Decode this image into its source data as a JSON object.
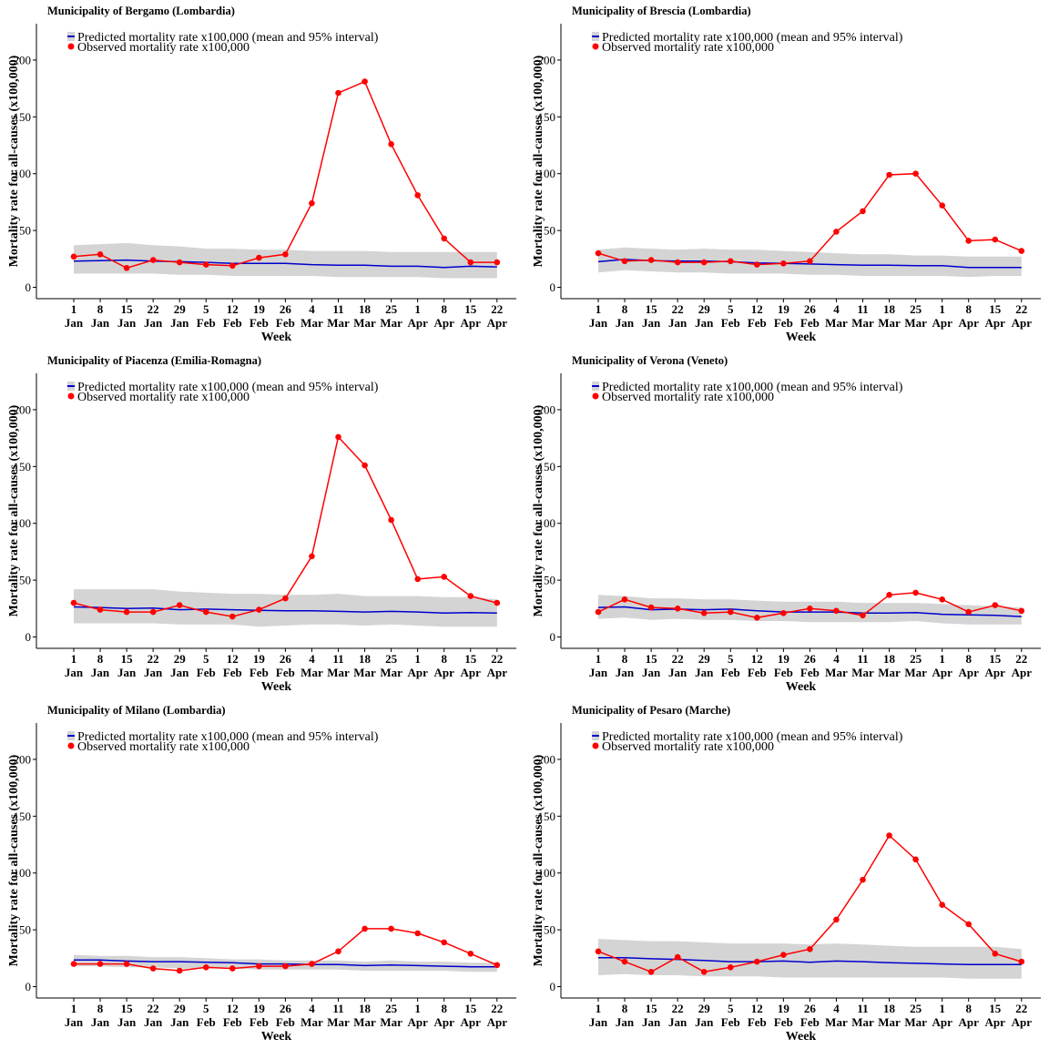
{
  "palette": {
    "band": "#d4d4d4",
    "predicted": "#0000cc",
    "observed": "#ff0000",
    "axis": "#000000"
  },
  "chart_data": [
    {
      "type": "line",
      "title": "Municipality of Bergamo (Lombardia)",
      "xlabel": "Week",
      "ylabel": "Mortality rate for all-causes (x100,000)",
      "ylim": [
        -10,
        232
      ],
      "yticks": [
        0,
        50,
        100,
        150,
        200
      ],
      "categories": [
        "1 Jan",
        "8 Jan",
        "15 Jan",
        "22 Jan",
        "29 Jan",
        "5 Feb",
        "12 Feb",
        "19 Feb",
        "26 Feb",
        "4 Mar",
        "11 Mar",
        "18 Mar",
        "25 Mar",
        "1 Apr",
        "8 Apr",
        "15 Apr",
        "22 Apr"
      ],
      "legend": {
        "position": "top-left",
        "entries": [
          "Predicted mortality rate x100,000 (mean and 95% interval)",
          "Observed mortality rate x100,000"
        ]
      },
      "series": [
        {
          "name": "Predicted mortality rate x100,000 (mean and 95% interval)",
          "kind": "mean",
          "values": [
            23,
            23.5,
            24,
            23,
            22.5,
            22,
            21,
            21,
            21,
            20,
            19.5,
            19.5,
            18.5,
            18.5,
            17.5,
            18.5,
            18
          ]
        },
        {
          "kind": "lower",
          "values": [
            12,
            12,
            12,
            12,
            11,
            11,
            10,
            10,
            10,
            10,
            9,
            9,
            9,
            9,
            8,
            8,
            8
          ]
        },
        {
          "kind": "upper",
          "values": [
            37,
            38,
            39,
            37,
            36,
            34,
            34,
            33,
            33,
            32,
            32,
            32,
            31,
            31,
            31,
            31,
            31
          ]
        },
        {
          "name": "Observed mortality rate x100,000",
          "kind": "observed",
          "values": [
            27,
            29,
            17,
            24,
            22,
            20,
            19,
            26,
            29,
            74,
            171,
            181,
            126,
            81,
            43,
            22,
            22
          ]
        }
      ]
    },
    {
      "type": "line",
      "title": "Municipality of Brescia (Lombardia)",
      "xlabel": "Week",
      "ylabel": "Mortality rate for all-causes (x100,000)",
      "ylim": [
        -10,
        232
      ],
      "yticks": [
        0,
        50,
        100,
        150,
        200
      ],
      "categories": [
        "1 Jan",
        "8 Jan",
        "15 Jan",
        "22 Jan",
        "29 Jan",
        "5 Feb",
        "12 Feb",
        "19 Feb",
        "26 Feb",
        "4 Mar",
        "11 Mar",
        "18 Mar",
        "25 Mar",
        "1 Apr",
        "8 Apr",
        "15 Apr",
        "22 Apr"
      ],
      "legend": {
        "position": "top-left",
        "entries": [
          "Predicted mortality rate x100,000 (mean and 95% interval)",
          "Observed mortality rate x100,000"
        ]
      },
      "series": [
        {
          "name": "Predicted mortality rate x100,000 (mean and 95% interval)",
          "kind": "mean",
          "values": [
            22.5,
            24.5,
            23.5,
            23,
            23,
            22.5,
            21.5,
            21,
            20.5,
            20,
            19.5,
            19.5,
            19,
            19,
            17.5,
            17.5,
            17.5
          ]
        },
        {
          "kind": "lower",
          "values": [
            13,
            15,
            14,
            13,
            13,
            12,
            12,
            12,
            11,
            11,
            10,
            10,
            10,
            10,
            9,
            10,
            10
          ]
        },
        {
          "kind": "upper",
          "values": [
            33,
            35,
            34,
            33,
            34,
            33,
            33,
            32,
            31,
            30,
            29,
            29,
            28,
            28,
            27,
            27,
            27
          ]
        },
        {
          "name": "Observed mortality rate x100,000",
          "kind": "observed",
          "values": [
            30,
            23,
            24,
            22,
            22,
            23,
            20,
            21,
            23,
            49,
            67,
            99,
            100,
            72,
            41,
            42,
            32
          ]
        }
      ]
    },
    {
      "type": "line",
      "title": "Municipality of Piacenza (Emilia-Romagna)",
      "xlabel": "Week",
      "ylabel": "Mortality rate for all-causes (x100,000)",
      "ylim": [
        -10,
        232
      ],
      "yticks": [
        0,
        50,
        100,
        150,
        200
      ],
      "categories": [
        "1 Jan",
        "8 Jan",
        "15 Jan",
        "22 Jan",
        "29 Jan",
        "5 Feb",
        "12 Feb",
        "19 Feb",
        "26 Feb",
        "4 Mar",
        "11 Mar",
        "18 Mar",
        "25 Mar",
        "1 Apr",
        "8 Apr",
        "15 Apr",
        "22 Apr"
      ],
      "legend": {
        "position": "top-left",
        "entries": [
          "Predicted mortality rate x100,000 (mean and 95% interval)",
          "Observed mortality rate x100,000"
        ]
      },
      "series": [
        {
          "name": "Predicted mortality rate x100,000 (mean and 95% interval)",
          "kind": "mean",
          "values": [
            26.5,
            26,
            25,
            25.5,
            24,
            24.5,
            24,
            23.5,
            23,
            23,
            22.5,
            22,
            22.5,
            22,
            21,
            21.5,
            21
          ]
        },
        {
          "kind": "lower",
          "values": [
            12,
            12,
            12,
            12,
            11,
            11,
            11,
            9,
            10,
            11,
            11,
            10,
            11,
            10,
            9,
            9,
            9
          ]
        },
        {
          "kind": "upper",
          "values": [
            42,
            42,
            42,
            42,
            40,
            39,
            38,
            38,
            37,
            37,
            38,
            36,
            36,
            36,
            35,
            35,
            33
          ]
        },
        {
          "name": "Observed mortality rate x100,000",
          "kind": "observed",
          "values": [
            30,
            24,
            22,
            22,
            28,
            22,
            18,
            24,
            34,
            71,
            176,
            151,
            103,
            51,
            53,
            36,
            30
          ]
        }
      ]
    },
    {
      "type": "line",
      "title": "Municipality of Verona (Veneto)",
      "xlabel": "Week",
      "ylabel": "Mortality rate for all-causes (x100,000)",
      "ylim": [
        -10,
        232
      ],
      "yticks": [
        0,
        50,
        100,
        150,
        200
      ],
      "categories": [
        "1 Jan",
        "8 Jan",
        "15 Jan",
        "22 Jan",
        "29 Jan",
        "5 Feb",
        "12 Feb",
        "19 Feb",
        "26 Feb",
        "4 Mar",
        "11 Mar",
        "18 Mar",
        "25 Mar",
        "1 Apr",
        "8 Apr",
        "15 Apr",
        "22 Apr"
      ],
      "legend": {
        "position": "top-left",
        "entries": [
          "Predicted mortality rate x100,000 (mean and 95% interval)",
          "Observed mortality rate x100,000"
        ]
      },
      "series": [
        {
          "name": "Predicted mortality rate x100,000 (mean and 95% interval)",
          "kind": "mean",
          "values": [
            26,
            26.5,
            24,
            24.5,
            24,
            24.5,
            23,
            22,
            22,
            22,
            21,
            21,
            21.5,
            20,
            19.5,
            19,
            18
          ]
        },
        {
          "kind": "lower",
          "values": [
            16,
            17,
            15,
            16,
            15,
            15,
            14,
            14,
            13,
            13,
            13,
            13,
            14,
            12,
            11,
            11,
            11
          ]
        },
        {
          "kind": "upper",
          "values": [
            37,
            36,
            34,
            34,
            33,
            33,
            32,
            31,
            31,
            31,
            30,
            30,
            30,
            29,
            28,
            27,
            26
          ]
        },
        {
          "name": "Observed mortality rate x100,000",
          "kind": "observed",
          "values": [
            22,
            33,
            26,
            25,
            21,
            22,
            17,
            21,
            25,
            23,
            19,
            37,
            39,
            33,
            22,
            28,
            23
          ]
        }
      ]
    },
    {
      "type": "line",
      "title": "Municipality of Milano (Lombardia)",
      "xlabel": "Week",
      "ylabel": "Mortality rate for all-causes (x100,000)",
      "ylim": [
        -10,
        232
      ],
      "yticks": [
        0,
        50,
        100,
        150,
        200
      ],
      "categories": [
        "1 Jan",
        "8 Jan",
        "15 Jan",
        "22 Jan",
        "29 Jan",
        "5 Feb",
        "12 Feb",
        "19 Feb",
        "26 Feb",
        "4 Mar",
        "11 Mar",
        "18 Mar",
        "25 Mar",
        "1 Apr",
        "8 Apr",
        "15 Apr",
        "22 Apr"
      ],
      "legend": {
        "position": "top-left",
        "entries": [
          "Predicted mortality rate x100,000 (mean and 95% interval)",
          "Observed mortality rate x100,000"
        ]
      },
      "series": [
        {
          "name": "Predicted mortality rate x100,000 (mean and 95% interval)",
          "kind": "mean",
          "values": [
            23.5,
            23.5,
            22.5,
            22,
            22,
            21.5,
            21,
            20,
            20,
            19.5,
            19.5,
            18.5,
            19,
            18.5,
            18,
            17.5,
            17.5
          ]
        },
        {
          "kind": "lower",
          "values": [
            18,
            18,
            17,
            17,
            16,
            16,
            16,
            15,
            15,
            15,
            15,
            14,
            14,
            14,
            14,
            13,
            13
          ]
        },
        {
          "kind": "upper",
          "values": [
            28,
            27,
            27,
            26,
            26,
            25,
            24,
            24,
            23,
            23,
            23,
            22,
            23,
            22,
            22,
            21,
            21
          ]
        },
        {
          "name": "Observed mortality rate x100,000",
          "kind": "observed",
          "values": [
            20,
            20,
            20,
            16,
            14,
            17,
            16,
            18,
            18,
            20,
            31,
            51,
            51,
            47,
            39,
            29,
            19
          ]
        }
      ]
    },
    {
      "type": "line",
      "title": "Municipality of Pesaro (Marche)",
      "xlabel": "Week",
      "ylabel": "Mortality rate for all-causes (x100,000)",
      "ylim": [
        -10,
        232
      ],
      "yticks": [
        0,
        50,
        100,
        150,
        200
      ],
      "categories": [
        "1 Jan",
        "8 Jan",
        "15 Jan",
        "22 Jan",
        "29 Jan",
        "5 Feb",
        "12 Feb",
        "19 Feb",
        "26 Feb",
        "4 Mar",
        "11 Mar",
        "18 Mar",
        "25 Mar",
        "1 Apr",
        "8 Apr",
        "15 Apr",
        "22 Apr"
      ],
      "legend": {
        "position": "top-left",
        "entries": [
          "Predicted mortality rate x100,000 (mean and 95% interval)",
          "Observed mortality rate x100,000"
        ]
      },
      "series": [
        {
          "name": "Predicted mortality rate x100,000 (mean and 95% interval)",
          "kind": "mean",
          "values": [
            25.5,
            25.5,
            24.5,
            24,
            23,
            22,
            22,
            22.5,
            21.5,
            22.5,
            22,
            21,
            20.5,
            20,
            19.5,
            19.5,
            19.5
          ]
        },
        {
          "kind": "lower",
          "values": [
            10,
            11,
            10,
            10,
            9,
            9,
            9,
            8,
            8,
            8,
            8,
            8,
            8,
            8,
            7,
            7,
            7
          ]
        },
        {
          "kind": "upper",
          "values": [
            42,
            41,
            40,
            40,
            39,
            38,
            38,
            38,
            37,
            38,
            37,
            36,
            35,
            35,
            35,
            35,
            33
          ]
        },
        {
          "name": "Observed mortality rate x100,000",
          "kind": "observed",
          "values": [
            31,
            22,
            13,
            26,
            13,
            17,
            22,
            28,
            33,
            59,
            94,
            133,
            112,
            72,
            55,
            29,
            22
          ]
        }
      ]
    }
  ]
}
